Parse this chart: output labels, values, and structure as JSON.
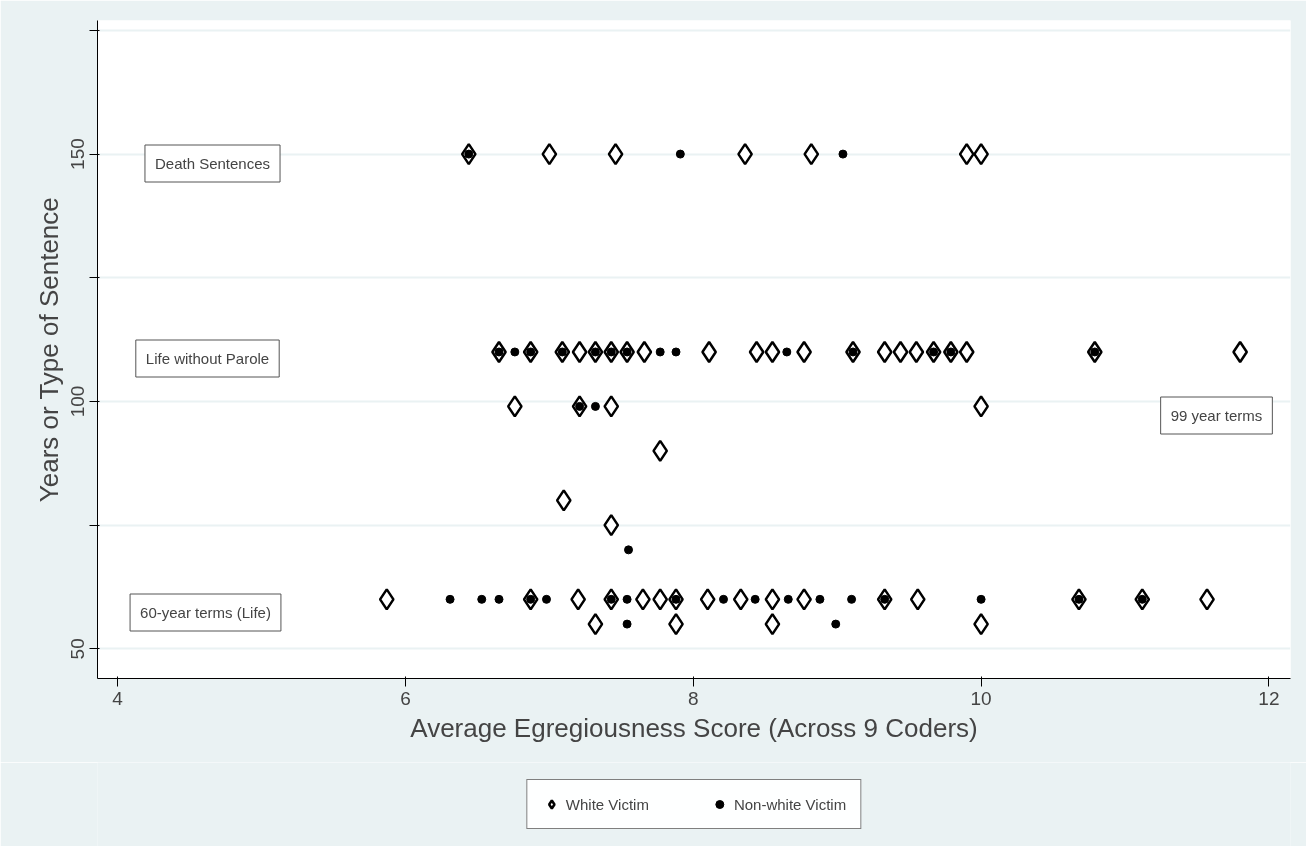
{
  "chart_data": {
    "type": "scatter",
    "xlabel": "Average Egregiousness Score (Across 9 Coders)",
    "ylabel": "Years or Type of Sentence",
    "xlim": [
      3.86,
      12.15
    ],
    "ylim": [
      44,
      177
    ],
    "xticks": [
      4,
      6,
      8,
      10,
      12
    ],
    "yticks": [
      50,
      {
        "value": 75,
        "label": null
      },
      100,
      {
        "value": 125,
        "label": null
      },
      150,
      {
        "value": 175,
        "label": null
      }
    ],
    "grid": "y",
    "legend": "bottom",
    "series": [
      {
        "name": "White Victim",
        "color": "#000000",
        "marker": "diamond",
        "x": [
          6.44,
          7.0,
          7.46,
          8.36,
          8.82,
          9.9,
          10.0,
          6.65,
          6.87,
          7.09,
          7.21,
          7.32,
          7.43,
          7.54,
          7.66,
          8.11,
          8.44,
          8.55,
          8.77,
          9.11,
          9.33,
          9.44,
          9.55,
          9.67,
          9.79,
          9.9,
          10.79,
          11.8,
          6.76,
          7.21,
          7.43,
          10.0,
          7.77,
          7.1,
          7.43,
          5.87,
          6.87,
          7.2,
          7.43,
          7.65,
          7.77,
          7.88,
          8.1,
          8.33,
          8.55,
          8.77,
          9.33,
          9.56,
          10.68,
          11.12,
          11.57,
          7.32,
          7.88,
          8.55,
          10.0
        ],
        "values": [
          150,
          150,
          150,
          150,
          150,
          150,
          150,
          110,
          110,
          110,
          110,
          110,
          110,
          110,
          110,
          110,
          110,
          110,
          110,
          110,
          110,
          110,
          110,
          110,
          110,
          110,
          110,
          110,
          99,
          99,
          99,
          99,
          90,
          80,
          75,
          60,
          60,
          60,
          60,
          60,
          60,
          60,
          60,
          60,
          60,
          60,
          60,
          60,
          60,
          60,
          60,
          55,
          55,
          55,
          55
        ]
      },
      {
        "name": "Non-white Victim",
        "color": "#000000",
        "marker": "circle",
        "x": [
          6.44,
          7.91,
          9.04,
          6.65,
          6.76,
          6.87,
          7.09,
          7.32,
          7.43,
          7.54,
          7.77,
          7.88,
          8.65,
          9.11,
          9.67,
          9.79,
          10.79,
          7.21,
          7.32,
          7.55,
          6.31,
          6.53,
          6.65,
          6.87,
          6.98,
          7.43,
          7.54,
          7.88,
          8.21,
          8.43,
          8.66,
          8.88,
          9.1,
          9.33,
          10.0,
          10.68,
          11.12,
          7.54,
          8.99
        ],
        "values": [
          150,
          150,
          150,
          110,
          110,
          110,
          110,
          110,
          110,
          110,
          110,
          110,
          110,
          110,
          110,
          110,
          110,
          99,
          99,
          70,
          60,
          60,
          60,
          60,
          60,
          60,
          60,
          60,
          60,
          60,
          60,
          60,
          60,
          60,
          60,
          60,
          60,
          55,
          55
        ]
      }
    ],
    "annotations": [
      "Death Sentences",
      "Life without Parole",
      "60-year terms (Life)",
      "99 year terms"
    ]
  }
}
